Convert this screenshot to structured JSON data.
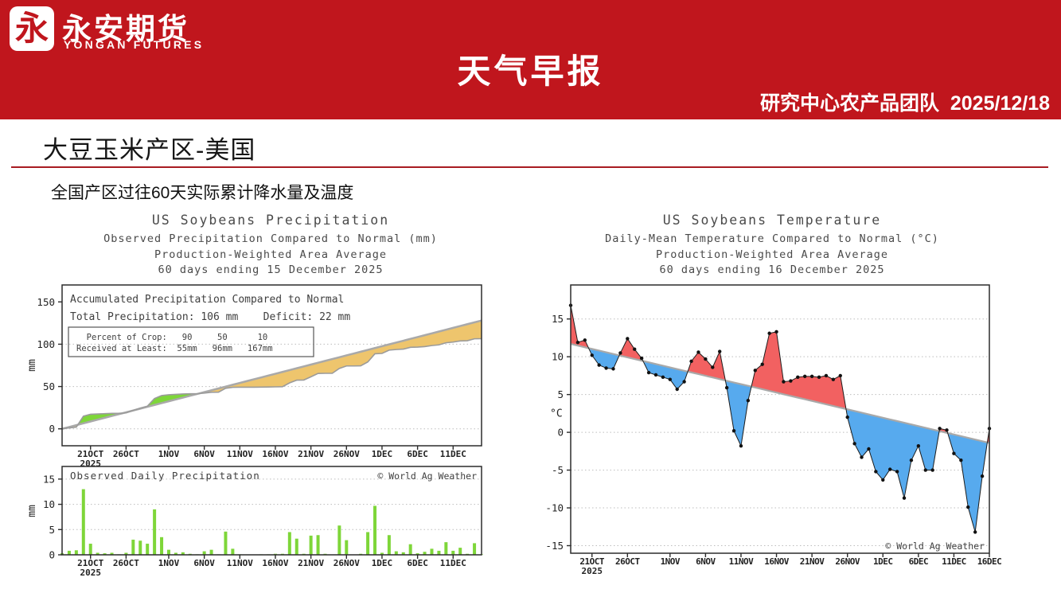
{
  "banner": {
    "bg_color": "#c0161d",
    "logo": {
      "glyph": "永",
      "name_cn": "永安期货",
      "name_en": "YONGAN FUTURES"
    },
    "title": "天气早报",
    "team_line": "研究中心农产品团队  2025/12/18"
  },
  "section": {
    "title": "大豆玉米产区-美国",
    "rule_color": "#a81c22",
    "subtitle": "全国产区过往60天实际累计降水量及温度"
  },
  "colors": {
    "green_fill": "#7ed639",
    "tan_fill": "#eec56d",
    "red_fill": "#f26161",
    "blue_fill": "#57aaee",
    "normal_line": "#a9a9a9",
    "observed_line": "#9b9b9b",
    "dot": "#111111",
    "grid": "#bdbdbd",
    "box": "#2c2c2c",
    "axis_text": "#222222",
    "chart_text": "#3f3f3f"
  },
  "chart_data": [
    {
      "id": "precip_accumulated",
      "type": "area",
      "title": "US Soybeans Precipitation",
      "subtitles": [
        "Observed Precipitation Compared to Normal (mm)",
        "Production-Weighted Area Average",
        "60 days ending 15 December 2025"
      ],
      "ylabel": "mm",
      "ylim": [
        -20,
        170
      ],
      "yticks": [
        0,
        50,
        100,
        150
      ],
      "grid_ticks": [
        0,
        50,
        100
      ],
      "xticks": {
        "labels": [
          "21OCT",
          "26OCT",
          "1NOV",
          "6NOV",
          "11NOV",
          "16NOV",
          "21NOV",
          "26NOV",
          "1DEC",
          "6DEC",
          "11DEC"
        ],
        "indices": [
          4,
          9,
          15,
          20,
          25,
          30,
          35,
          40,
          45,
          50,
          55
        ]
      },
      "year": "2025",
      "normal_line": {
        "start": 0,
        "end": 128
      },
      "observed": "cumulative_of_daily_precipitation",
      "annotation": {
        "line1": "Accumulated Precipitation Compared to Normal",
        "line2": "Total Precipitation: 106 mm    Deficit: 22 mm",
        "table_row1": "  Percent of Crop:   90     50      10",
        "table_row2": "Received at Least:  55mm   96mm   167mm"
      }
    },
    {
      "id": "precip_daily",
      "type": "bar",
      "inner_title": "Observed Daily Precipitation",
      "credit": "© World Ag Weather",
      "ylabel": "mm",
      "ylim": [
        0,
        17.5
      ],
      "yticks": [
        0,
        5,
        10,
        15
      ],
      "grid_ticks": [
        5,
        10,
        15
      ],
      "xticks": {
        "labels": [
          "21OCT",
          "26OCT",
          "1NOV",
          "6NOV",
          "11NOV",
          "16NOV",
          "21NOV",
          "26NOV",
          "1DEC",
          "6DEC",
          "11DEC"
        ],
        "indices": [
          4,
          9,
          15,
          20,
          25,
          30,
          35,
          40,
          45,
          50,
          55
        ]
      },
      "year": "2025",
      "values_mm": [
        0.3,
        0.8,
        0.9,
        13.0,
        2.2,
        0.4,
        0.3,
        0.4,
        0.1,
        0.4,
        3.0,
        2.8,
        2.2,
        9.0,
        3.5,
        1.0,
        0.4,
        0.5,
        0.2,
        0.1,
        0.7,
        1.0,
        0.1,
        4.6,
        1.2,
        0.1,
        0.0,
        0.0,
        0.1,
        0.1,
        0.2,
        0.2,
        4.5,
        3.2,
        0.2,
        3.8,
        3.9,
        0.2,
        0.0,
        5.8,
        2.9,
        0.0,
        0.2,
        4.5,
        9.7,
        0.4,
        3.9,
        0.7,
        0.5,
        2.1,
        0.3,
        0.6,
        1.2,
        0.8,
        2.5,
        0.8,
        1.4,
        0.2,
        2.3,
        0.1
      ]
    },
    {
      "id": "temperature",
      "type": "area",
      "title": "US Soybeans Temperature",
      "subtitles": [
        "Daily-Mean Temperature Compared to Normal (°C)",
        "Production-Weighted Area Average",
        "60 days ending 16 December 2025"
      ],
      "ylabel": "°C",
      "ylim": [
        -16,
        19.5
      ],
      "yticks": [
        -15,
        -10,
        -5,
        0,
        5,
        10,
        15
      ],
      "grid_ticks": [
        -15,
        -10,
        -5,
        0,
        5,
        10,
        15
      ],
      "xticks": {
        "labels": [
          "21OCT",
          "26OCT",
          "1NOV",
          "6NOV",
          "11NOV",
          "16NOV",
          "21NOV",
          "26NOV",
          "1DEC",
          "6DEC",
          "11DEC",
          "16DEC"
        ],
        "indices": [
          3,
          8,
          14,
          19,
          24,
          29,
          34,
          39,
          44,
          49,
          54,
          59
        ]
      },
      "year": "2025",
      "normal_line": {
        "start": 11.7,
        "end": -1.4
      },
      "observed_c": [
        16.8,
        11.9,
        12.2,
        10.2,
        8.9,
        8.5,
        8.4,
        10.5,
        12.4,
        11.0,
        9.8,
        7.9,
        7.6,
        7.3,
        7.0,
        5.7,
        6.7,
        9.4,
        10.6,
        9.7,
        8.6,
        10.7,
        5.9,
        0.2,
        -1.8,
        4.2,
        8.2,
        9.0,
        13.1,
        13.3,
        6.7,
        6.8,
        7.3,
        7.4,
        7.4,
        7.3,
        7.5,
        7.0,
        7.5,
        2.0,
        -1.5,
        -3.3,
        -2.2,
        -5.2,
        -6.3,
        -4.9,
        -5.2,
        -8.7,
        -3.7,
        -1.8,
        -5.0,
        -5.0,
        0.5,
        0.3,
        -2.8,
        -3.7,
        -9.9,
        -13.2,
        -5.8,
        0.5
      ],
      "credit": "© World Ag Weather"
    }
  ]
}
